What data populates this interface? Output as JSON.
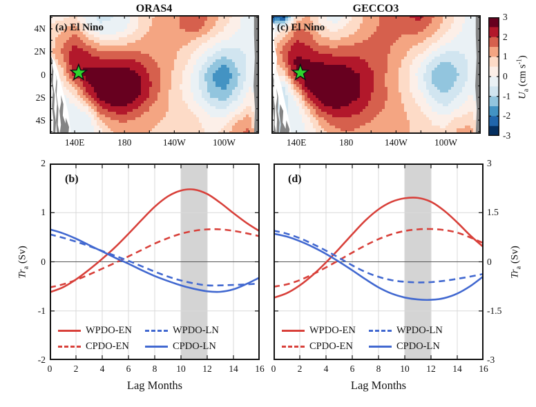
{
  "colors": {
    "red": "#d8403a",
    "blue": "#4168d0",
    "shade_band": "#d4d4d4",
    "grid_line": "#d9d9d9",
    "zero_line": "#555555",
    "axis": "#111111",
    "land_gray": "#848484",
    "star_green": "#2ed52e",
    "palette_top_to_bottom": [
      "#67001f",
      "#b2182b",
      "#d6604d",
      "#f4a582",
      "#fddbc7",
      "#fcefe8",
      "#eaf1f5",
      "#d1e5f0",
      "#92c5de",
      "#4393c3",
      "#2166ac",
      "#053061"
    ]
  },
  "top_row": {
    "left": {
      "title": "ORAS4",
      "panel_label": "(a) El Nino"
    },
    "right": {
      "title": "GECCO3",
      "panel_label": "(c) El Nino"
    },
    "xtick_labels": [
      "140E",
      "180",
      "140W",
      "100W"
    ],
    "ytick_labels": [
      "4N",
      "2N",
      "0",
      "2S",
      "4S"
    ]
  },
  "colorbar": {
    "tick_labels": [
      "3",
      "2",
      "1",
      "0",
      "-1",
      "-2",
      "-3"
    ],
    "label": {
      "italic": "U",
      "sub": "a",
      "rest": " (cm s",
      "sup": "-1",
      "close": ")"
    }
  },
  "bottom_row": {
    "left": {
      "panel_label": "(b)"
    },
    "right": {
      "panel_label": "(d)"
    },
    "xlabel": "Lag Months",
    "ylabel": {
      "italic": "Tr",
      "sub": "a",
      "rest": " (Sv)"
    },
    "left_ytick_labels": [
      "2",
      "1",
      "0",
      "-1",
      "-2"
    ],
    "right_ytick_labels": [
      "3",
      "1.5",
      "0",
      "-1.5",
      "-3"
    ],
    "xtick_labels": [
      "0",
      "2",
      "4",
      "6",
      "8",
      "10",
      "12",
      "14",
      "16"
    ],
    "legend": [
      {
        "label": "WPDO-EN",
        "color": "red",
        "style": "solid"
      },
      {
        "label": "CPDO-EN",
        "color": "red",
        "style": "dashed"
      },
      {
        "label": "WPDO-LN",
        "color": "blue",
        "style": "dashed"
      },
      {
        "label": "CPDO-LN",
        "color": "blue",
        "style": "solid"
      }
    ]
  },
  "chart_data": [
    {
      "id": "a",
      "type": "contour",
      "title": "ORAS4",
      "panel_label": "(a) El Nino",
      "value_label": "Ua (cm/s)",
      "levels_range": [
        -3,
        3
      ],
      "level_step": 0.5,
      "lon_range": [
        120,
        288
      ],
      "lat_range": [
        -5.2,
        5.2
      ],
      "lon_ticks": [
        140,
        180,
        220,
        260
      ],
      "lat_ticks": [
        4,
        2,
        0,
        -2,
        -4
      ],
      "star_lonlat": [
        143.2,
        0.15
      ],
      "grid": {
        "lons": [
          117,
          130,
          140,
          150,
          160,
          170,
          180,
          190,
          200,
          210,
          220,
          230,
          240,
          250,
          260,
          270,
          280,
          288
        ],
        "lats": [
          5,
          4,
          3,
          2,
          1,
          0,
          -1,
          -2,
          -3,
          -4,
          -5
        ],
        "values": [
          [
            0.3,
            0.4,
            0.6,
            -0.3,
            -0.6,
            -0.5,
            -0.3,
            0.4,
            0.9,
            1.2,
            1.4,
            1.7,
            1.9,
            1.3,
            0.8,
            0.3,
            -0.4,
            -0.6
          ],
          [
            0.5,
            0.9,
            1.3,
            0.3,
            -0.4,
            -0.4,
            -0.1,
            0.5,
            1.0,
            1.3,
            1.4,
            1.6,
            1.6,
            1.0,
            0.5,
            0.1,
            -0.3,
            -0.5
          ],
          [
            0.6,
            1.3,
            1.9,
            1.2,
            0.6,
            0.5,
            0.7,
            1.0,
            1.2,
            1.3,
            1.2,
            1.1,
            0.8,
            0.4,
            0.0,
            -0.2,
            -0.4,
            -0.5
          ],
          [
            0.5,
            1.6,
            2.3,
            2.0,
            1.6,
            1.5,
            1.5,
            1.5,
            1.4,
            1.3,
            1.1,
            0.8,
            0.3,
            -0.3,
            -0.7,
            -0.6,
            -0.4,
            -0.5
          ],
          [
            0.3,
            1.2,
            2.5,
            2.4,
            2.3,
            2.3,
            2.3,
            2.1,
            1.7,
            1.4,
            1.0,
            0.5,
            -0.2,
            -1.0,
            -1.4,
            -0.9,
            -0.4,
            -0.5
          ],
          [
            0.1,
            0.8,
            2.2,
            2.7,
            2.8,
            2.9,
            2.9,
            2.6,
            2.0,
            1.4,
            0.9,
            0.3,
            -0.5,
            -1.5,
            -2.0,
            -1.2,
            -0.3,
            -0.4
          ],
          [
            -0.2,
            0.3,
            1.2,
            2.3,
            2.9,
            3.1,
            3.1,
            2.8,
            2.1,
            1.4,
            0.8,
            0.2,
            -0.5,
            -1.4,
            -1.7,
            -1.0,
            0.0,
            -0.3
          ],
          [
            -0.4,
            -0.2,
            0.4,
            1.7,
            2.6,
            3.0,
            3.0,
            2.6,
            1.9,
            1.3,
            0.8,
            0.3,
            -0.3,
            -1.0,
            -1.2,
            -0.6,
            0.3,
            -0.2
          ],
          [
            -0.5,
            -0.4,
            -0.2,
            0.3,
            1.8,
            2.3,
            2.3,
            2.0,
            1.5,
            1.1,
            0.9,
            0.6,
            0.2,
            -0.4,
            -0.6,
            0.0,
            0.7,
            -0.1
          ],
          [
            -0.5,
            -0.5,
            -0.4,
            -0.4,
            1.0,
            1.5,
            1.6,
            1.4,
            1.1,
            1.0,
            0.9,
            0.8,
            0.5,
            0.2,
            0.2,
            0.9,
            1.3,
            0.0
          ],
          [
            -0.5,
            -0.5,
            -0.4,
            -0.5,
            0.3,
            1.0,
            1.2,
            1.1,
            1.0,
            0.9,
            0.9,
            0.8,
            0.6,
            0.4,
            0.6,
            1.4,
            1.6,
            0.2
          ]
        ]
      }
    },
    {
      "id": "c",
      "type": "contour",
      "title": "GECCO3",
      "panel_label": "(c) El Nino",
      "value_label": "Ua (cm/s)",
      "levels_range": [
        -3,
        3
      ],
      "level_step": 0.5,
      "lon_range": [
        120,
        288
      ],
      "lat_range": [
        -5.2,
        5.2
      ],
      "lon_ticks": [
        140,
        180,
        220,
        260
      ],
      "lat_ticks": [
        4,
        2,
        0,
        -2,
        -4
      ],
      "star_lonlat": [
        143.2,
        0.15
      ],
      "grid": {
        "lons": [
          117,
          130,
          140,
          150,
          160,
          170,
          180,
          190,
          200,
          210,
          220,
          230,
          240,
          250,
          260,
          270,
          280,
          288
        ],
        "lats": [
          5,
          4,
          3,
          2,
          1,
          0,
          -1,
          -2,
          -3,
          -4,
          -5
        ],
        "values": [
          [
            -1.8,
            -2.6,
            0.8,
            1.1,
            0.2,
            -0.4,
            0.2,
            0.8,
            1.3,
            1.6,
            1.8,
            2.0,
            2.1,
            1.5,
            0.9,
            0.3,
            -0.4,
            -0.6
          ],
          [
            -0.6,
            0.4,
            1.5,
            1.4,
            0.7,
            0.3,
            0.6,
            1.0,
            1.4,
            1.6,
            1.6,
            1.7,
            1.7,
            1.2,
            0.7,
            0.2,
            -0.3,
            -0.5
          ],
          [
            0.3,
            1.2,
            2.0,
            1.8,
            1.2,
            1.0,
            1.2,
            1.4,
            1.6,
            1.6,
            1.5,
            1.3,
            1.1,
            0.7,
            0.2,
            -0.2,
            -0.4,
            -0.5
          ],
          [
            0.5,
            1.8,
            2.4,
            2.2,
            1.9,
            1.8,
            1.8,
            1.8,
            1.7,
            1.6,
            1.4,
            1.0,
            0.6,
            0.0,
            -0.5,
            -0.5,
            -0.4,
            -0.5
          ],
          [
            0.3,
            1.5,
            2.7,
            2.6,
            2.5,
            2.4,
            2.4,
            2.2,
            1.9,
            1.6,
            1.2,
            0.7,
            0.0,
            -0.8,
            -1.1,
            -0.8,
            -0.4,
            -0.5
          ],
          [
            0.0,
            0.8,
            2.4,
            2.9,
            2.9,
            2.9,
            2.8,
            2.5,
            2.1,
            1.6,
            1.1,
            0.5,
            -0.3,
            -1.2,
            -1.5,
            -1.0,
            -0.4,
            -0.5
          ],
          [
            -0.3,
            -0.5,
            1.5,
            2.8,
            3.1,
            3.1,
            2.9,
            2.6,
            2.1,
            1.6,
            1.1,
            0.5,
            -0.2,
            -1.0,
            -1.3,
            -0.8,
            -0.2,
            -0.4
          ],
          [
            -0.5,
            -0.8,
            0.3,
            2.1,
            2.9,
            3.0,
            2.8,
            2.5,
            2.0,
            1.6,
            1.2,
            0.7,
            0.2,
            -0.6,
            -0.9,
            -0.4,
            0.1,
            -0.3
          ],
          [
            -0.5,
            -0.6,
            -0.3,
            1.1,
            2.2,
            2.5,
            2.4,
            2.2,
            1.8,
            1.5,
            1.2,
            0.9,
            0.5,
            -0.1,
            -0.4,
            0.0,
            0.4,
            -0.2
          ],
          [
            -0.5,
            -0.5,
            -0.4,
            0.4,
            1.3,
            1.8,
            1.9,
            1.7,
            1.5,
            1.3,
            1.2,
            1.0,
            0.8,
            0.4,
            0.3,
            0.7,
            0.9,
            -0.1
          ],
          [
            -0.5,
            -0.5,
            -0.4,
            0.1,
            0.8,
            1.3,
            1.5,
            1.4,
            1.3,
            1.2,
            1.1,
            1.0,
            0.8,
            0.6,
            0.6,
            1.1,
            1.2,
            0.0
          ]
        ]
      }
    },
    {
      "id": "b",
      "type": "line",
      "panel_label": "(b)",
      "xlabel": "Lag Months",
      "ylabel": "Tra (Sv)",
      "x": [
        0,
        1,
        2,
        3,
        4,
        5,
        6,
        7,
        8,
        9,
        10,
        11,
        12,
        13,
        14,
        15,
        16
      ],
      "xlim": [
        0,
        16
      ],
      "ylim": [
        -2,
        2
      ],
      "yticks": [
        2,
        1,
        0,
        -1,
        -2
      ],
      "grid_x": [
        2,
        4,
        6,
        8,
        10,
        12,
        14
      ],
      "grid_y": [
        1,
        -1
      ],
      "zero_line": 0,
      "shaded_x": [
        10,
        12
      ],
      "series": [
        {
          "name": "WPDO-EN",
          "color": "red",
          "style": "solid",
          "values": [
            -0.62,
            -0.52,
            -0.36,
            -0.16,
            0.06,
            0.3,
            0.57,
            0.85,
            1.12,
            1.33,
            1.45,
            1.47,
            1.38,
            1.2,
            0.99,
            0.79,
            0.62
          ]
        },
        {
          "name": "CPDO-EN",
          "color": "red",
          "style": "dashed",
          "values": [
            -0.52,
            -0.46,
            -0.37,
            -0.26,
            -0.14,
            -0.02,
            0.11,
            0.24,
            0.37,
            0.48,
            0.57,
            0.63,
            0.66,
            0.66,
            0.63,
            0.58,
            0.52
          ]
        },
        {
          "name": "WPDO-LN",
          "color": "blue",
          "style": "dashed",
          "values": [
            0.56,
            0.49,
            0.41,
            0.32,
            0.22,
            0.12,
            0.02,
            -0.09,
            -0.2,
            -0.3,
            -0.38,
            -0.44,
            -0.48,
            -0.48,
            -0.47,
            -0.46,
            -0.44
          ]
        },
        {
          "name": "CPDO-LN",
          "color": "blue",
          "style": "solid",
          "values": [
            0.66,
            0.58,
            0.47,
            0.34,
            0.21,
            0.08,
            -0.04,
            -0.17,
            -0.29,
            -0.39,
            -0.48,
            -0.55,
            -0.6,
            -0.61,
            -0.56,
            -0.45,
            -0.32
          ]
        }
      ]
    },
    {
      "id": "d",
      "type": "line",
      "panel_label": "(d)",
      "xlabel": "Lag Months",
      "ylabel": "Tra (Sv)",
      "x": [
        0,
        1,
        2,
        3,
        4,
        5,
        6,
        7,
        8,
        9,
        10,
        11,
        12,
        13,
        14,
        15,
        16
      ],
      "xlim": [
        0,
        16
      ],
      "ylim": [
        -3,
        3
      ],
      "yticks": [
        3,
        1.5,
        0,
        -1.5,
        -3
      ],
      "grid_x": [
        2,
        4,
        6,
        8,
        10,
        12,
        14
      ],
      "grid_y": [
        1.5,
        -1.5
      ],
      "zero_line": 0,
      "shaded_x": [
        10,
        12
      ],
      "series": [
        {
          "name": "WPDO-EN",
          "color": "red",
          "style": "solid",
          "values": [
            -1.1,
            -0.96,
            -0.72,
            -0.4,
            -0.02,
            0.4,
            0.84,
            1.26,
            1.6,
            1.83,
            1.94,
            1.95,
            1.83,
            1.56,
            1.2,
            0.8,
            0.45
          ]
        },
        {
          "name": "CPDO-EN",
          "color": "red",
          "style": "dashed",
          "values": [
            -0.76,
            -0.69,
            -0.56,
            -0.38,
            -0.17,
            0.05,
            0.28,
            0.5,
            0.69,
            0.84,
            0.94,
            0.99,
            1.0,
            0.97,
            0.89,
            0.74,
            0.57
          ]
        },
        {
          "name": "WPDO-LN",
          "color": "blue",
          "style": "dashed",
          "values": [
            0.95,
            0.86,
            0.72,
            0.54,
            0.34,
            0.12,
            -0.11,
            -0.31,
            -0.46,
            -0.56,
            -0.61,
            -0.63,
            -0.62,
            -0.58,
            -0.52,
            -0.45,
            -0.37
          ]
        },
        {
          "name": "CPDO-LN",
          "color": "blue",
          "style": "solid",
          "values": [
            0.86,
            0.77,
            0.63,
            0.45,
            0.24,
            0.0,
            -0.26,
            -0.53,
            -0.78,
            -0.97,
            -1.09,
            -1.15,
            -1.16,
            -1.11,
            -0.97,
            -0.74,
            -0.44
          ]
        }
      ]
    }
  ]
}
